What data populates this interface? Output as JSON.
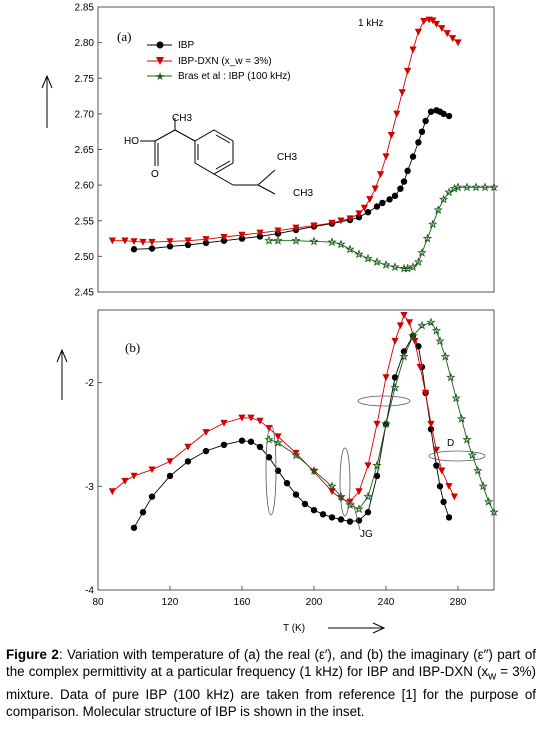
{
  "chart_data": [
    {
      "type": "scatter",
      "panel_label": "(a)",
      "annotation": "1 kHz",
      "ylim": [
        2.45,
        2.85
      ],
      "xlim": [
        80,
        300
      ],
      "y_ticks": [
        "2.45",
        "2.50",
        "2.55",
        "2.60",
        "2.65",
        "2.70",
        "2.75",
        "2.80",
        "2.85"
      ],
      "legend_position": "top-left",
      "series": [
        {
          "name": "IBP",
          "marker": "circle",
          "color": "#000000",
          "x": [
            100,
            110,
            120,
            130,
            140,
            150,
            160,
            170,
            180,
            190,
            200,
            210,
            220,
            225,
            230,
            235,
            238,
            242,
            245,
            248,
            250,
            252,
            255,
            258,
            260,
            262,
            265,
            268,
            270,
            272,
            275
          ],
          "y": [
            2.51,
            2.511,
            2.514,
            2.516,
            2.519,
            2.522,
            2.525,
            2.528,
            2.532,
            2.537,
            2.542,
            2.546,
            2.551,
            2.555,
            2.562,
            2.57,
            2.575,
            2.58,
            2.585,
            2.595,
            2.605,
            2.62,
            2.64,
            2.66,
            2.675,
            2.69,
            2.703,
            2.705,
            2.703,
            2.7,
            2.697
          ]
        },
        {
          "name": "IBP-DXN (x_w = 3%)",
          "marker": "triangle-down",
          "color": "#d40000",
          "x": [
            88,
            95,
            100,
            105,
            110,
            120,
            130,
            140,
            150,
            160,
            170,
            180,
            190,
            200,
            210,
            215,
            220,
            225,
            228,
            231,
            234,
            237,
            240,
            243,
            246,
            249,
            252,
            255,
            258,
            261,
            264,
            266,
            268,
            271,
            274,
            277,
            280
          ],
          "y": [
            2.522,
            2.522,
            2.521,
            2.52,
            2.52,
            2.521,
            2.522,
            2.524,
            2.527,
            2.53,
            2.533,
            2.536,
            2.54,
            2.543,
            2.547,
            2.55,
            2.553,
            2.56,
            2.568,
            2.58,
            2.595,
            2.615,
            2.64,
            2.67,
            2.7,
            2.73,
            2.76,
            2.79,
            2.815,
            2.83,
            2.832,
            2.831,
            2.826,
            2.82,
            2.813,
            2.806,
            2.8
          ]
        },
        {
          "name": "Bras et al : IBP (100 kHz)",
          "marker": "star",
          "color": "#1a5c1a",
          "x": [
            175,
            180,
            190,
            200,
            210,
            215,
            220,
            225,
            230,
            235,
            240,
            245,
            250,
            252,
            255,
            258,
            260,
            263,
            266,
            269,
            272,
            275,
            278,
            280,
            285,
            290,
            295,
            300
          ],
          "y": [
            2.522,
            2.522,
            2.522,
            2.521,
            2.52,
            2.517,
            2.51,
            2.503,
            2.497,
            2.492,
            2.488,
            2.485,
            2.483,
            2.483,
            2.485,
            2.492,
            2.505,
            2.525,
            2.545,
            2.565,
            2.58,
            2.59,
            2.595,
            2.597,
            2.597,
            2.597,
            2.597,
            2.597
          ]
        }
      ],
      "inset_structure_labels": [
        "CH3",
        "HO",
        "O",
        "CH3",
        "CH3"
      ]
    },
    {
      "type": "scatter",
      "panel_label": "(b)",
      "xlabel": "T (K)",
      "xlim": [
        80,
        300
      ],
      "x_ticks": [
        "80",
        "120",
        "160",
        "200",
        "240",
        "280"
      ],
      "ylim": [
        -4,
        -1.3
      ],
      "y_ticks": [
        "-2",
        "-3",
        "-4"
      ],
      "annotations": [
        "D",
        "JG"
      ],
      "series": [
        {
          "name": "IBP",
          "marker": "circle",
          "color": "#000000",
          "x": [
            100,
            105,
            110,
            120,
            130,
            140,
            150,
            160,
            165,
            170,
            175,
            180,
            185,
            190,
            195,
            200,
            205,
            210,
            215,
            220,
            225,
            230,
            235,
            240,
            245,
            250,
            255,
            258,
            260,
            262,
            265,
            268,
            270,
            272,
            275
          ],
          "y": [
            -3.4,
            -3.25,
            -3.1,
            -2.9,
            -2.76,
            -2.66,
            -2.6,
            -2.56,
            -2.57,
            -2.62,
            -2.72,
            -2.85,
            -2.97,
            -3.08,
            -3.17,
            -3.23,
            -3.27,
            -3.3,
            -3.32,
            -3.34,
            -3.33,
            -3.25,
            -2.9,
            -2.4,
            -1.95,
            -1.7,
            -1.55,
            -1.65,
            -1.85,
            -2.1,
            -2.45,
            -2.8,
            -3.0,
            -3.15,
            -3.3
          ]
        },
        {
          "name": "IBP-DXN (x_w = 3%)",
          "marker": "triangle-down",
          "color": "#d40000",
          "x": [
            88,
            95,
            100,
            110,
            120,
            130,
            140,
            150,
            160,
            165,
            170,
            175,
            180,
            190,
            200,
            210,
            215,
            220,
            225,
            230,
            235,
            240,
            245,
            248,
            250,
            253,
            256,
            259,
            262,
            265,
            268,
            271,
            275,
            278
          ],
          "y": [
            -3.05,
            -2.95,
            -2.9,
            -2.84,
            -2.76,
            -2.62,
            -2.48,
            -2.39,
            -2.34,
            -2.34,
            -2.37,
            -2.44,
            -2.52,
            -2.68,
            -2.86,
            -3.05,
            -3.12,
            -3.15,
            -3.05,
            -2.8,
            -2.4,
            -1.95,
            -1.6,
            -1.45,
            -1.35,
            -1.42,
            -1.6,
            -1.85,
            -2.1,
            -2.4,
            -2.65,
            -2.85,
            -3.0,
            -3.1
          ]
        },
        {
          "name": "Bras et al : IBP (100 kHz)",
          "marker": "star",
          "color": "#1a5c1a",
          "x": [
            175,
            180,
            190,
            200,
            210,
            215,
            220,
            225,
            230,
            235,
            240,
            245,
            250,
            255,
            260,
            265,
            268,
            270,
            273,
            276,
            279,
            282,
            285,
            288,
            291,
            294,
            297,
            300
          ],
          "y": [
            -2.55,
            -2.58,
            -2.7,
            -2.85,
            -3.0,
            -3.1,
            -3.18,
            -3.22,
            -3.1,
            -2.8,
            -2.4,
            -2.05,
            -1.75,
            -1.55,
            -1.45,
            -1.42,
            -1.5,
            -1.6,
            -1.75,
            -1.95,
            -2.15,
            -2.35,
            -2.55,
            -2.7,
            -2.85,
            -3.0,
            -3.15,
            -3.25
          ]
        }
      ]
    }
  ],
  "caption": {
    "label": "Figure 2",
    "text": ": Variation with temperature of (a) the real (ε′), and (b) the imaginary (ε″) part of the complex permittivity at a particular frequency (1 kHz) for IBP and IBP-DXN (x",
    "sub": "w",
    "text2": " = 3%) mixture. Data of pure IBP (100 kHz) are taken from reference [1] for the purpose of comparison. Molecular structure of IBP is shown in the inset."
  }
}
